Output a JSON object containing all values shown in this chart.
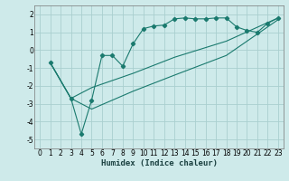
{
  "xlabel": "Humidex (Indice chaleur)",
  "bg_color": "#ceeaea",
  "grid_color": "#aacfcf",
  "line_color": "#1a7a6e",
  "xlim": [
    -0.5,
    23.5
  ],
  "ylim": [
    -5.5,
    2.5
  ],
  "yticks": [
    -5,
    -4,
    -3,
    -2,
    -1,
    0,
    1,
    2
  ],
  "xticks": [
    0,
    1,
    2,
    3,
    4,
    5,
    6,
    7,
    8,
    9,
    10,
    11,
    12,
    13,
    14,
    15,
    16,
    17,
    18,
    19,
    20,
    21,
    22,
    23
  ],
  "line1_x": [
    1,
    3,
    4,
    5,
    6,
    7,
    8,
    9,
    10,
    11,
    12,
    13,
    14,
    15,
    16,
    17,
    18,
    19,
    20,
    21,
    22,
    23
  ],
  "line1_y": [
    -0.7,
    -2.7,
    -4.7,
    -2.8,
    -0.3,
    -0.3,
    -0.9,
    0.35,
    1.2,
    1.35,
    1.4,
    1.75,
    1.8,
    1.75,
    1.75,
    1.8,
    1.8,
    1.3,
    1.1,
    1.0,
    1.5,
    1.8
  ],
  "line2_x": [
    1,
    3,
    5,
    9,
    13,
    18,
    23
  ],
  "line2_y": [
    -0.7,
    -2.7,
    -2.1,
    -1.3,
    -0.4,
    0.5,
    1.8
  ],
  "line3_x": [
    1,
    3,
    5,
    9,
    13,
    18,
    23
  ],
  "line3_y": [
    -0.7,
    -2.7,
    -3.3,
    -2.3,
    -1.4,
    -0.3,
    1.7
  ]
}
